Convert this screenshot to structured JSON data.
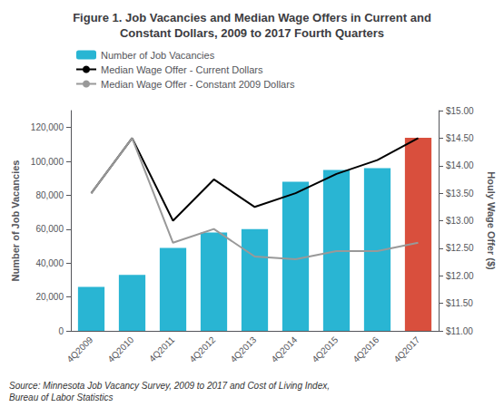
{
  "chart_data": {
    "type": "bar",
    "title": "Figure 1. Job Vacancies and Median Wage Offers in Current and\nConstant Dollars, 2009 to 2017 Fourth Quarters",
    "categories": [
      "4Q2009",
      "4Q2010",
      "4Q2011",
      "4Q2012",
      "4Q2013",
      "4Q2014",
      "4Q2015",
      "4Q2016",
      "4Q2017"
    ],
    "series": [
      {
        "name": "Number of Job Vacancies",
        "type": "bar",
        "color": "#29b5d3",
        "colors": [
          "#29b5d3",
          "#29b5d3",
          "#29b5d3",
          "#29b5d3",
          "#29b5d3",
          "#29b5d3",
          "#29b5d3",
          "#29b5d3",
          "#d94f3d"
        ],
        "values": [
          26000,
          33000,
          49000,
          58000,
          60000,
          88000,
          95000,
          96000,
          114000
        ]
      },
      {
        "name": "Median Wage Offer - Current Dollars",
        "type": "line",
        "axis": "y2",
        "color": "#000000",
        "values": [
          13.5,
          14.5,
          13.0,
          13.75,
          13.25,
          13.5,
          13.85,
          14.1,
          14.5
        ]
      },
      {
        "name": "Median Wage Offer - Constant 2009 Dollars",
        "type": "line",
        "axis": "y2",
        "color": "#999999",
        "values": [
          13.5,
          14.5,
          12.6,
          12.85,
          12.35,
          12.3,
          12.45,
          12.45,
          12.6
        ]
      }
    ],
    "ylabel": "Number of Job Vacancies",
    "y2label": "Houly Wage Offer ($)",
    "ylim": [
      0,
      130000
    ],
    "yticks": [
      0,
      {
        "value": 20000,
        "label": "20,000"
      },
      {
        "value": 40000,
        "label": "40,000"
      },
      {
        "value": 60000,
        "label": "60,000"
      },
      {
        "value": 80000,
        "label": "80,000"
      },
      {
        "value": 100000,
        "label": "100,000"
      },
      {
        "value": 120000,
        "label": "120,000"
      }
    ],
    "y2lim": [
      11.0,
      15.0
    ],
    "y2ticks": [
      {
        "value": 11.0,
        "label": "$11.00"
      },
      {
        "value": 11.5,
        "label": "$11.50"
      },
      {
        "value": 12.0,
        "label": "$12.00"
      },
      {
        "value": 12.5,
        "label": "$12.50"
      },
      {
        "value": 13.0,
        "label": "$13.00"
      },
      {
        "value": 13.5,
        "label": "$13.50"
      },
      {
        "value": 14.0,
        "label": "$14.00"
      },
      {
        "value": 14.5,
        "label": "$14.50"
      },
      {
        "value": 15.0,
        "label": "$15.00"
      }
    ],
    "annotation": "Source: Minnesota Job Vacancy Survey, 2009 to 2017 and Cost of Living Index,\nBureau of Labor Statistics",
    "legend": "upper left",
    "grid": false
  }
}
